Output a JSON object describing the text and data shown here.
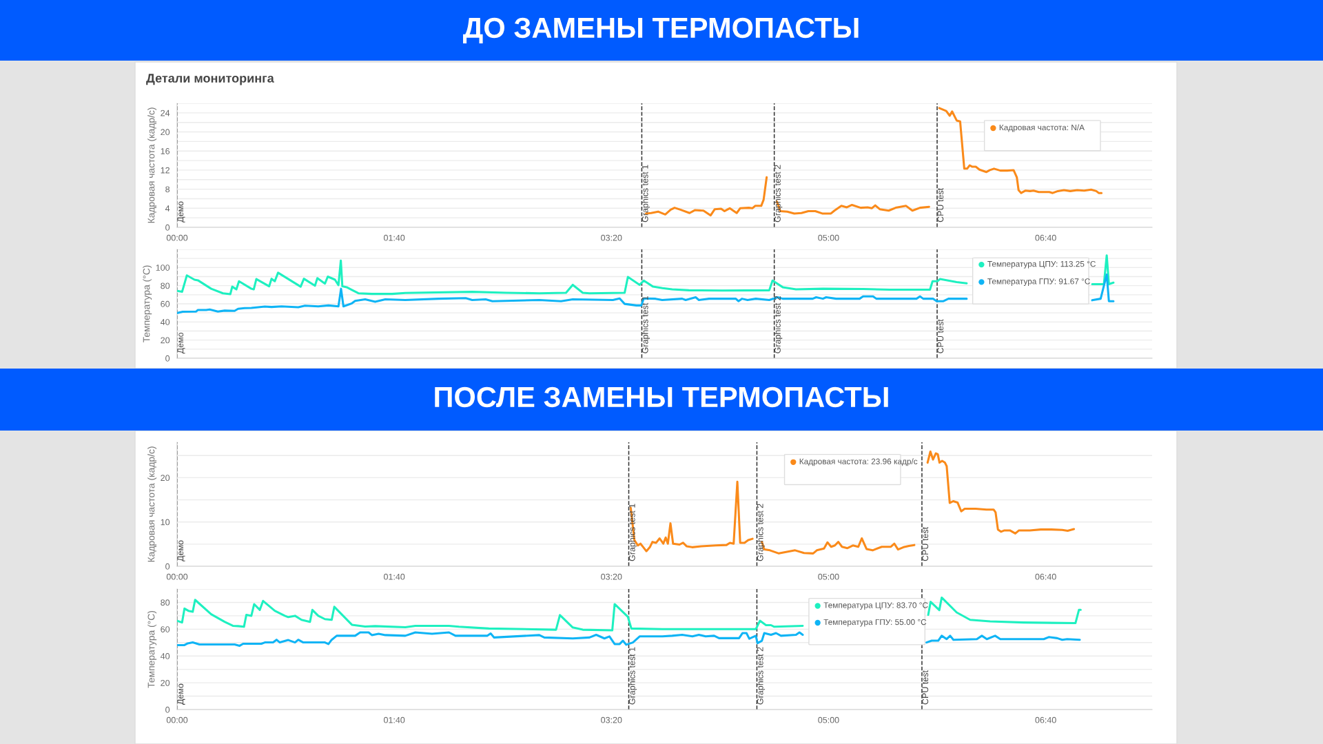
{
  "chart_data": [
    {
      "type": "line",
      "title": "ДО ЗАМЕНЫ ТЕРМОПАСТЫ",
      "subtitle": "Детали мониторинга",
      "ylabel": "Кадровая частота (кадр/с)",
      "xlim": [
        0,
        449
      ],
      "xticks": [
        {
          "value": 0,
          "label": "00:00"
        },
        {
          "value": 100,
          "label": "01:40"
        },
        {
          "value": 200,
          "label": "03:20"
        },
        {
          "value": 300,
          "label": "05:00"
        },
        {
          "value": 400,
          "label": "06:40"
        }
      ],
      "ylim": [
        0,
        26
      ],
      "yticks": [
        0,
        {
          "value": 2,
          "label": null
        },
        4,
        {
          "value": 6,
          "label": null
        },
        8,
        {
          "value": 10,
          "label": null
        },
        12,
        {
          "value": 14,
          "label": null
        },
        16,
        {
          "value": 18,
          "label": null
        },
        20,
        {
          "value": 22,
          "label": null
        },
        24,
        {
          "value": 26,
          "label": null
        }
      ],
      "grid": "y",
      "line_style": "solid",
      "ref_lines": [
        {
          "axis": "x",
          "value": 0,
          "label": "Демо",
          "color": "#333333",
          "line_style": "dashed"
        },
        {
          "axis": "x",
          "value": 214,
          "label": "Graphics test 1",
          "color": "#333333",
          "line_style": "dashed"
        },
        {
          "axis": "x",
          "value": 275,
          "label": "Graphics test 2",
          "color": "#333333",
          "line_style": "dashed"
        },
        {
          "axis": "x",
          "value": 350,
          "label": "CPU test",
          "color": "#333333",
          "line_style": "dashed"
        }
      ],
      "annotations": [
        "Кадровая частота: N/A"
      ],
      "series": [
        {
          "color": "#fa8a1a",
          "x": [
            215.9,
            218.3,
            221.5,
            224.8,
            227.3,
            229.1,
            231.8,
            236.0,
            238.4,
            242.4,
            245.7,
            247.6,
            250.5,
            252.1,
            254.5,
            257.7,
            259.3,
            263.3,
            264.9,
            266.2,
            269.0,
            270.1,
            271.5,
            274.0,
            276.2,
            277.8,
            281.0,
            284.2,
            287.5,
            290.7,
            293.9,
            297.1,
            301.1,
            302.7,
            305.9,
            308.4,
            310.8,
            314.8,
            318.0,
            319.9,
            321.5,
            323.6,
            327.7,
            330.9,
            335.7,
            338.6,
            342.1,
            346.3,
            348.5,
            351.0,
            354.2,
            355.8,
            356.9,
            359.0,
            360.6,
            362.5,
            363.8,
            365.0,
            366.2,
            367.8,
            369.5,
            372.7,
            374.3,
            376.2,
            379.1,
            382.3,
            385.2,
            386.7,
            387.5,
            388.7,
            390.7,
            392.8,
            394.4,
            396.8,
            401.6,
            403.2,
            405.6,
            408.4,
            411.3,
            414.5,
            417.7,
            420.9,
            423.3,
            424.4,
            425.7
          ],
          "values": [
            2.9,
            3.0,
            3.3,
            2.7,
            3.7,
            4.1,
            3.7,
            3.0,
            3.6,
            3.5,
            2.5,
            3.8,
            3.9,
            3.4,
            4.0,
            3.0,
            4.0,
            4.1,
            4.0,
            4.5,
            4.5,
            5.8,
            10.5,
            null,
            5.4,
            3.4,
            3.3,
            2.9,
            3.0,
            3.4,
            3.4,
            2.9,
            2.9,
            3.5,
            4.5,
            4.2,
            4.7,
            4.1,
            4.2,
            4.0,
            4.6,
            3.8,
            3.5,
            4.1,
            4.5,
            3.5,
            4.1,
            4.3,
            null,
            25.0,
            24.4,
            23.4,
            24.3,
            22.4,
            22.2,
            12.3,
            12.3,
            13.0,
            12.7,
            12.7,
            12.1,
            11.6,
            12.0,
            12.3,
            11.9,
            11.9,
            12.0,
            10.5,
            7.8,
            7.2,
            7.7,
            7.6,
            7.7,
            7.4,
            7.4,
            7.2,
            7.6,
            7.8,
            7.6,
            7.8,
            7.7,
            7.9,
            7.6,
            7.2,
            7.2
          ]
        }
      ]
    },
    {
      "type": "line",
      "ylabel": "Температура (°C)",
      "tick_labels": "y",
      "xlim": [
        0,
        449
      ],
      "xticks": [
        {
          "value": 0,
          "label": null
        },
        {
          "value": 100,
          "label": null
        },
        {
          "value": 200,
          "label": null
        },
        {
          "value": 300,
          "label": null
        },
        {
          "value": 400,
          "label": null
        }
      ],
      "ylim": [
        0,
        120
      ],
      "yticks": [
        0,
        {
          "value": 10,
          "label": null
        },
        20,
        {
          "value": 30,
          "label": null
        },
        40,
        {
          "value": 50,
          "label": null
        },
        60,
        {
          "value": 70,
          "label": null
        },
        80,
        {
          "value": 90,
          "label": null
        },
        100,
        {
          "value": 110,
          "label": null
        },
        {
          "value": 120,
          "label": null
        }
      ],
      "grid": "y",
      "line_style": "solid",
      "ref_lines": [
        {
          "axis": "x",
          "value": 0,
          "label": "Демо",
          "color": "#333333",
          "line_style": "dashed"
        },
        {
          "axis": "x",
          "value": 214,
          "label": "Graphics test 1",
          "color": "#333333",
          "line_style": "dashed"
        },
        {
          "axis": "x",
          "value": 275,
          "label": "Graphics test 2",
          "color": "#333333",
          "line_style": "dashed"
        },
        {
          "axis": "x",
          "value": 350,
          "label": "CPU test",
          "color": "#333333",
          "line_style": "dashed"
        }
      ],
      "annotations": [
        "Температура ЦПУ: 113.25 °C",
        "Температура ГПУ: 91.67 °C"
      ],
      "series": [
        {
          "color": "#1ef0c0",
          "x": [
            0,
            2.3,
            4.5,
            8.0,
            9.6,
            15.7,
            21.1,
            24.5,
            25.4,
            27.3,
            28.5,
            34.2,
            35.3,
            36.5,
            42.4,
            43.5,
            45.0,
            46.5,
            56.9,
            58.4,
            63.5,
            64.6,
            68.1,
            69.4,
            72.7,
            74.3,
            75.4,
            76.1,
            78.1,
            83.5,
            89.7,
            99.0,
            105.1,
            135.9,
            151.4,
            166.8,
            179.1,
            182.2,
            186.8,
            189.9,
            206.1,
            207.6,
            213.0,
            214.9,
            219.2,
            223.5,
            228.0,
            235.7,
            251.1,
            272.7,
            274.2,
            278.9,
            285.0,
            297.4,
            315.9,
            328.2,
            346.7,
            347.9,
            350.1,
            351.3,
            359.0,
            363.6,
            395.0,
            421.4,
            426.8,
            428.1,
            429.1,
            431.2
          ],
          "values": [
            74.2,
            73.2,
            91.3,
            86.6,
            85.9,
            76.6,
            71.6,
            70.6,
            78.9,
            75.9,
            84.9,
            76.6,
            75.9,
            87.3,
            79.3,
            87.6,
            84.9,
            94.3,
            78.9,
            87.6,
            79.9,
            88.3,
            82.3,
            90.0,
            86.6,
            80.6,
            107.7,
            79.3,
            78.3,
            71.6,
            70.9,
            70.9,
            71.9,
            73.2,
            72.2,
            71.6,
            72.2,
            80.9,
            72.2,
            71.6,
            72.2,
            89.6,
            80.9,
            85.6,
            78.9,
            77.3,
            75.9,
            74.9,
            74.6,
            74.9,
            85.6,
            78.3,
            75.9,
            76.6,
            76.3,
            75.6,
            75.6,
            84.9,
            84.9,
            87.3,
            83.9,
            82.6,
            null,
            81.6,
            81.6,
            113.4,
            81.6,
            83.3
          ]
        },
        {
          "color": "#0fb4f5",
          "x": [
            0,
            2.6,
            8.8,
            9.6,
            13.4,
            15.0,
            18.8,
            21.9,
            26.5,
            28.1,
            31.1,
            34.2,
            40.4,
            43.5,
            48.1,
            55.8,
            58.9,
            65.0,
            69.7,
            74.3,
            75.5,
            76.6,
            80.5,
            82.0,
            86.6,
            91.2,
            95.9,
            105.1,
            120.5,
            132.9,
            135.9,
            142.1,
            145.2,
            166.8,
            176.8,
            182.2,
            200.7,
            203.8,
            206.1,
            211.5,
            213.8,
            214.9,
            220.3,
            223.4,
            232.6,
            234.2,
            238.8,
            240.3,
            245.0,
            257.3,
            258.5,
            260.1,
            262.7,
            266.5,
            272.7,
            276.6,
            278.9,
            292.7,
            294.3,
            297.4,
            298.9,
            303.5,
            314.3,
            315.9,
            320.5,
            322.0,
            340.5,
            342.1,
            343.6,
            348.2,
            349.8,
            352.9,
            355.2,
            363.6,
            395.0,
            421.4,
            425.3,
            428.1,
            429.1,
            431.2
          ],
          "values": [
            49.8,
            51.2,
            51.5,
            53.2,
            53.2,
            53.8,
            51.5,
            52.5,
            52.2,
            54.5,
            55.2,
            55.5,
            56.9,
            56.5,
            57.2,
            56.2,
            57.9,
            57.2,
            58.2,
            57.2,
            76.6,
            57.2,
            60.5,
            63.2,
            64.9,
            62.2,
            64.9,
            64.2,
            65.6,
            66.2,
            64.2,
            64.9,
            62.9,
            64.2,
            62.9,
            64.9,
            64.2,
            65.9,
            59.9,
            58.2,
            58.2,
            65.9,
            65.6,
            64.2,
            65.6,
            64.2,
            67.2,
            64.2,
            65.6,
            65.6,
            62.9,
            65.6,
            64.2,
            65.6,
            64.2,
            67.2,
            65.6,
            65.6,
            67.2,
            65.6,
            67.2,
            65.6,
            65.6,
            68.2,
            68.2,
            65.6,
            65.6,
            68.2,
            65.6,
            65.6,
            62.9,
            62.9,
            65.6,
            65.6,
            null,
            63.9,
            65.6,
            92.3,
            62.9,
            62.9
          ]
        }
      ]
    },
    {
      "type": "line",
      "title": "ПОСЛЕ ЗАМЕНЫ ТЕРМОПАСТЫ",
      "ylabel": "Кадровая частота (кадр/с)",
      "xlim": [
        0,
        449
      ],
      "xticks": [
        {
          "value": 0,
          "label": "00:00"
        },
        {
          "value": 100,
          "label": "01:40"
        },
        {
          "value": 200,
          "label": "03:20"
        },
        {
          "value": 300,
          "label": "05:00"
        },
        {
          "value": 400,
          "label": "06:40"
        }
      ],
      "ylim": [
        0,
        28
      ],
      "yticks": [
        0,
        {
          "value": 5,
          "label": null
        },
        10,
        {
          "value": 15,
          "label": null
        },
        20,
        {
          "value": 25,
          "label": null
        }
      ],
      "grid": "y",
      "line_style": "solid",
      "ref_lines": [
        {
          "axis": "x",
          "value": 0,
          "label": "Демо",
          "color": "#333333",
          "line_style": "dashed"
        },
        {
          "axis": "x",
          "value": 208,
          "label": "Graphics test 1",
          "color": "#333333",
          "line_style": "dashed"
        },
        {
          "axis": "x",
          "value": 267,
          "label": "Graphics test 2",
          "color": "#333333",
          "line_style": "dashed"
        },
        {
          "axis": "x",
          "value": 343,
          "label": "CPU test",
          "color": "#333333",
          "line_style": "dashed"
        }
      ],
      "annotations": [
        "Кадровая частота: 23.96 кадр/с"
      ],
      "series": [
        {
          "color": "#fa8a1a",
          "x": [
            208.9,
            210.6,
            212.2,
            213.4,
            214.7,
            216.1,
            217.7,
            218.9,
            220.6,
            222.2,
            223.9,
            225.0,
            226.0,
            227.2,
            228.4,
            231.4,
            233.0,
            234.7,
            237.2,
            241.3,
            248.0,
            253.0,
            254.6,
            256.3,
            258.0,
            259.3,
            261.3,
            263.0,
            265.0,
            267.0,
            269.3,
            270.4,
            273.0,
            277.1,
            281.3,
            284.6,
            288.7,
            292.9,
            294.6,
            297.9,
            299.5,
            301.2,
            302.9,
            304.5,
            306.2,
            308.7,
            311.2,
            313.7,
            315.3,
            317.5,
            320.3,
            324.5,
            328.7,
            330.3,
            332.0,
            334.5,
            337.0,
            339.5,
            342.0,
            345.6,
            346.9,
            348.1,
            349.4,
            350.3,
            351.1,
            352.3,
            353.6,
            354.4,
            355.8,
            357.4,
            359.4,
            361.1,
            362.7,
            367.7,
            372.7,
            376.0,
            376.9,
            378.0,
            379.4,
            381.0,
            383.5,
            386.0,
            387.7,
            392.7,
            397.7,
            402.6,
            407.6,
            410.1,
            413.0
          ],
          "values": [
            13.2,
            5.9,
            4.7,
            5.1,
            4.3,
            3.4,
            4.3,
            5.5,
            5.3,
            6.3,
            5.1,
            6.5,
            5.1,
            9.7,
            5.1,
            4.9,
            5.3,
            4.5,
            4.3,
            4.5,
            4.7,
            4.8,
            5.3,
            5.1,
            19.1,
            5.3,
            5.3,
            5.9,
            6.2,
            null,
            5.5,
            3.8,
            3.6,
            2.9,
            3.3,
            3.6,
            3.0,
            2.9,
            3.6,
            4.0,
            5.4,
            4.4,
            4.7,
            5.5,
            4.4,
            4.1,
            4.7,
            4.4,
            6.3,
            3.9,
            3.6,
            4.4,
            4.4,
            5.1,
            3.8,
            4.3,
            4.6,
            4.8,
            null,
            23.4,
            25.9,
            24.1,
            25.5,
            25.3,
            23.4,
            23.8,
            23.4,
            22.6,
            14.3,
            14.7,
            14.4,
            12.4,
            13.0,
            13.0,
            12.8,
            12.8,
            12.2,
            8.3,
            7.8,
            8.1,
            8.1,
            7.4,
            8.1,
            8.1,
            8.3,
            8.3,
            8.2,
            8.0,
            8.4
          ]
        }
      ]
    },
    {
      "type": "line",
      "ylabel": "Температура (°C)",
      "xlim": [
        0,
        449
      ],
      "xticks": [
        {
          "value": 0,
          "label": "00:00"
        },
        {
          "value": 100,
          "label": "01:40"
        },
        {
          "value": 200,
          "label": "03:20"
        },
        {
          "value": 300,
          "label": "05:00"
        },
        {
          "value": 400,
          "label": "06:40"
        }
      ],
      "ylim": [
        0,
        90
      ],
      "yticks": [
        0,
        {
          "value": 10,
          "label": null
        },
        20,
        {
          "value": 30,
          "label": null
        },
        40,
        {
          "value": 50,
          "label": null
        },
        60,
        {
          "value": 70,
          "label": null
        },
        80,
        {
          "value": 90,
          "label": null
        }
      ],
      "grid": "y",
      "line_style": "solid",
      "ref_lines": [
        {
          "axis": "x",
          "value": 0,
          "label": "Демо",
          "color": "#333333",
          "line_style": "dashed"
        },
        {
          "axis": "x",
          "value": 208,
          "label": "Graphics test 1",
          "color": "#333333",
          "line_style": "dashed"
        },
        {
          "axis": "x",
          "value": 267,
          "label": "Graphics test 2",
          "color": "#333333",
          "line_style": "dashed"
        },
        {
          "axis": "x",
          "value": 343,
          "label": "CPU test",
          "color": "#333333",
          "line_style": "dashed"
        }
      ],
      "annotations": [
        "Температура ЦПУ: 83.70 °C",
        "Температура ГПУ: 55.00 °C"
      ],
      "series": [
        {
          "color": "#1ef0c0",
          "x": [
            0,
            2.3,
            3.4,
            5.2,
            7.2,
            8.3,
            15.7,
            21.9,
            25.7,
            28.1,
            30.8,
            31.9,
            34.2,
            35.5,
            38.1,
            39.6,
            45.0,
            49.6,
            51.2,
            54.3,
            57.3,
            61.2,
            62.3,
            65.0,
            68.1,
            71.2,
            72.4,
            80.5,
            86.6,
            91.2,
            105.1,
            109.7,
            125.2,
            129.8,
            143.6,
            174.5,
            176.3,
            182.2,
            186.8,
            200.4,
            201.5,
            207.6,
            209.2,
            223.5,
            266.5,
            268.4,
            271.2,
            273.5,
            275.0,
            288.1,
            300.0,
            345.9,
            347.0,
            351.0,
            352.1,
            359.0,
            365.2,
            374.4,
            389.8,
            413.7,
            415.3,
            416.1
          ],
          "values": [
            66.3,
            65.0,
            75.4,
            73.7,
            73.0,
            81.9,
            71.2,
            65.5,
            62.5,
            62.3,
            61.8,
            70.7,
            70.0,
            78.7,
            74.4,
            81.1,
            73.7,
            70.0,
            69.0,
            70.0,
            67.0,
            65.5,
            74.4,
            70.0,
            67.5,
            67.0,
            76.7,
            63.3,
            62.0,
            62.3,
            61.5,
            62.5,
            62.5,
            61.8,
            60.5,
            59.6,
            70.5,
            61.3,
            59.6,
            59.1,
            78.7,
            69.2,
            60.5,
            60.0,
            60.0,
            66.3,
            63.0,
            63.0,
            61.8,
            62.5,
            null,
            70.7,
            80.4,
            74.2,
            83.6,
            72.5,
            67.0,
            65.8,
            65.0,
            64.5,
            74.4,
            74.4
          ]
        },
        {
          "color": "#0fb4f5",
          "x": [
            0,
            3.4,
            4.9,
            7.2,
            10.3,
            26.5,
            28.8,
            30.4,
            38.8,
            40.4,
            44.2,
            45.8,
            47.3,
            51.2,
            54.3,
            55.8,
            58.1,
            68.1,
            69.7,
            71.2,
            73.5,
            82.0,
            84.3,
            88.2,
            89.7,
            92.8,
            95.9,
            105.1,
            109.7,
            117.4,
            125.2,
            128.2,
            142.9,
            144.4,
            146.0,
            166.8,
            169.1,
            182.2,
            189.9,
            193.0,
            196.8,
            199.1,
            201.5,
            203.8,
            205.3,
            206.8,
            209.9,
            213.0,
            223.5,
            228.0,
            232.6,
            237.3,
            240.3,
            243.4,
            247.3,
            249.6,
            258.8,
            260.4,
            262.2,
            263.5,
            266.5,
            267.3,
            269.3,
            270.4,
            273.5,
            275.8,
            278.1,
            285.0,
            286.6,
            288.1,
            300.0,
            345.1,
            347.5,
            350.5,
            352.1,
            354.4,
            356.0,
            357.5,
            368.3,
            370.6,
            372.9,
            376.7,
            379.1,
            389.8,
            399.1,
            401.4,
            405.3,
            407.6,
            409.9,
            415.7
          ],
          "values": [
            48.1,
            48.1,
            49.4,
            50.1,
            48.6,
            48.6,
            47.6,
            49.1,
            49.1,
            50.1,
            50.1,
            52.1,
            50.1,
            51.9,
            50.1,
            52.1,
            50.1,
            50.1,
            48.9,
            52.1,
            55.1,
            55.1,
            57.6,
            57.6,
            55.6,
            56.6,
            55.6,
            55.1,
            57.6,
            56.6,
            57.6,
            55.1,
            55.1,
            56.8,
            53.8,
            55.6,
            53.8,
            53.1,
            53.8,
            55.8,
            53.1,
            54.6,
            48.9,
            48.9,
            51.4,
            48.4,
            50.1,
            54.6,
            54.6,
            55.1,
            55.8,
            54.6,
            55.8,
            54.6,
            55.1,
            53.3,
            53.3,
            57.1,
            57.1,
            52.9,
            55.1,
            49.6,
            51.4,
            57.1,
            55.8,
            57.1,
            55.1,
            55.8,
            57.6,
            55.8,
            null,
            50.1,
            51.4,
            51.4,
            55.1,
            52.6,
            55.1,
            52.1,
            52.6,
            55.1,
            52.6,
            55.1,
            52.6,
            52.6,
            52.6,
            54.1,
            53.3,
            52.1,
            52.6,
            52.1
          ]
        }
      ]
    }
  ]
}
